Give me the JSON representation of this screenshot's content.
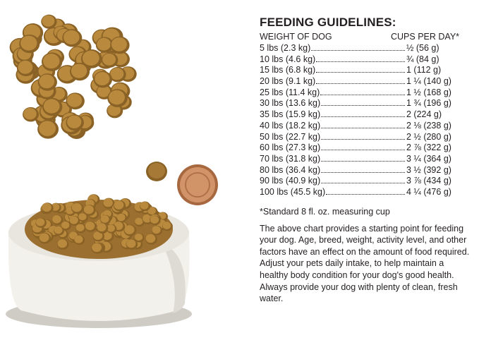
{
  "guidelines": {
    "title": "FEEDING GUIDELINES:",
    "col_weight": "WEIGHT OF DOG",
    "col_cups": "CUPS PER DAY*",
    "rows": [
      {
        "weight": "5 lbs (2.3 kg)",
        "cups": "½ (56 g)"
      },
      {
        "weight": "10 lbs (4.6 kg)",
        "cups": "¾ (84 g)"
      },
      {
        "weight": "15 lbs (6.8 kg)",
        "cups": "1 (112 g)"
      },
      {
        "weight": "20 lbs (9.1 kg)",
        "cups": "1 ¼ (140 g)"
      },
      {
        "weight": "25 lbs (11.4 kg)",
        "cups": "1 ½ (168 g)"
      },
      {
        "weight": "30 lbs (13.6 kg)",
        "cups": "1 ¾ (196 g)"
      },
      {
        "weight": "35 lbs (15.9 kg)",
        "cups": "2 (224 g)"
      },
      {
        "weight": "40 lbs (18.2 kg)",
        "cups": "2 ⅛ (238 g)"
      },
      {
        "weight": "50 lbs (22.7 kg)",
        "cups": "2 ½ (280 g)"
      },
      {
        "weight": "60 lbs (27.3 kg)",
        "cups": "2 ⅞ (322 g)"
      },
      {
        "weight": "70 lbs (31.8 kg)",
        "cups": "3 ¼ (364 g)"
      },
      {
        "weight": "80 lbs (36.4 kg)",
        "cups": "3 ½ (392 g)"
      },
      {
        "weight": "90 lbs (40.9 kg)",
        "cups": "3 ⅞ (434 g)"
      },
      {
        "weight": "100 lbs (45.5 kg)",
        "cups": "4 ¼ (476 g)"
      }
    ],
    "footnote": "*Standard 8 fl. oz. measuring cup",
    "description": "The above chart provides a starting point for feeding your dog. Age, breed, weight, activity level, and other factors have an effect on the amount of food required. Adjust your pets daily intake, to help maintain a healthy body condition for your dog's good health. Always provide your dog with plenty of clean, fresh water."
  },
  "colors": {
    "kibble": "#b98a3e",
    "kibble_dark": "#8a6226",
    "bowl": "#f1efea",
    "coin": "#c8845a"
  }
}
